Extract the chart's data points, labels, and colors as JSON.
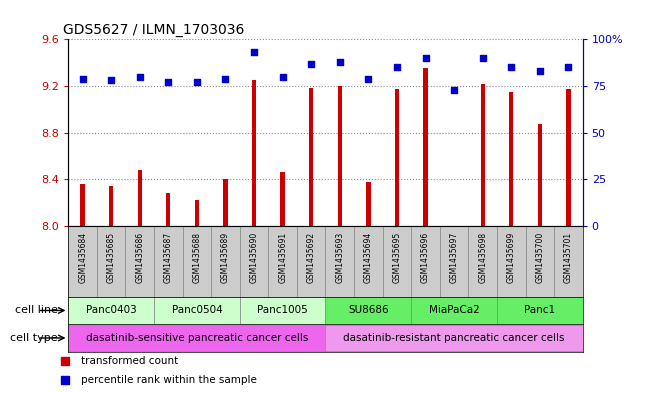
{
  "title": "GDS5627 / ILMN_1703036",
  "samples": [
    "GSM1435684",
    "GSM1435685",
    "GSM1435686",
    "GSM1435687",
    "GSM1435688",
    "GSM1435689",
    "GSM1435690",
    "GSM1435691",
    "GSM1435692",
    "GSM1435693",
    "GSM1435694",
    "GSM1435695",
    "GSM1435696",
    "GSM1435697",
    "GSM1435698",
    "GSM1435699",
    "GSM1435700",
    "GSM1435701"
  ],
  "transformed_count": [
    8.36,
    8.34,
    8.48,
    8.28,
    8.22,
    8.4,
    9.25,
    8.46,
    9.18,
    9.2,
    8.38,
    9.17,
    9.35,
    8.0,
    9.22,
    9.15,
    8.87,
    9.17
  ],
  "percentile_rank": [
    79,
    78,
    80,
    77,
    77,
    79,
    93,
    80,
    87,
    88,
    79,
    85,
    90,
    73,
    90,
    85,
    83,
    85
  ],
  "ylim_left": [
    8.0,
    9.6
  ],
  "ylim_right": [
    0,
    100
  ],
  "yticks_left": [
    8.0,
    8.4,
    8.8,
    9.2,
    9.6
  ],
  "yticks_right": [
    0,
    25,
    50,
    75,
    100
  ],
  "bar_color": "#cc0000",
  "dot_color": "#0000cc",
  "cell_lines": [
    {
      "name": "Panc0403",
      "start": 0,
      "end": 2,
      "color": "#ccffcc"
    },
    {
      "name": "Panc0504",
      "start": 3,
      "end": 5,
      "color": "#ccffcc"
    },
    {
      "name": "Panc1005",
      "start": 6,
      "end": 8,
      "color": "#ccffcc"
    },
    {
      "name": "SU8686",
      "start": 9,
      "end": 11,
      "color": "#66ee66"
    },
    {
      "name": "MiaPaCa2",
      "start": 12,
      "end": 14,
      "color": "#66ee66"
    },
    {
      "name": "Panc1",
      "start": 15,
      "end": 17,
      "color": "#66ee66"
    }
  ],
  "cell_types": [
    {
      "name": "dasatinib-sensitive pancreatic cancer cells",
      "start": 0,
      "end": 8,
      "color": "#ee66ee"
    },
    {
      "name": "dasatinib-resistant pancreatic cancer cells",
      "start": 9,
      "end": 17,
      "color": "#ee99ee"
    }
  ],
  "legend_items": [
    {
      "label": "transformed count",
      "color": "#cc0000"
    },
    {
      "label": "percentile rank within the sample",
      "color": "#0000cc"
    }
  ],
  "grid_color": "#888888",
  "bg_color": "#ffffff",
  "tick_color_left": "#cc0000",
  "tick_color_right": "#0000cc",
  "xticklabel_bg": "#cccccc",
  "bar_width": 0.15
}
